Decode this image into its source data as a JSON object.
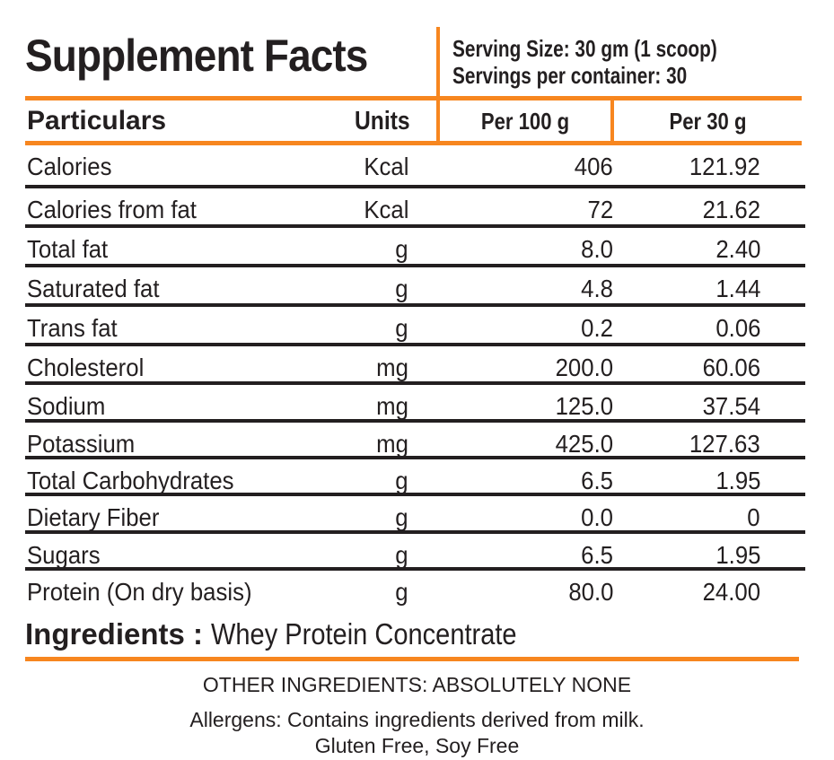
{
  "header": {
    "title": "Supplement Facts",
    "serving_size": "Serving Size: 30 gm (1 scoop)",
    "servings_per_container": "Servings per container:  30"
  },
  "columns": {
    "particulars": "Particulars",
    "units": "Units",
    "per100": "Per 100 g",
    "per30": "Per 30 g"
  },
  "rows": [
    {
      "name": "Calories",
      "unit": "Kcal",
      "per100": "406",
      "per30": "121.92"
    },
    {
      "name": "Calories from fat",
      "unit": "Kcal",
      "per100": "72",
      "per30": "21.62"
    },
    {
      "name": "Total fat",
      "unit": "g",
      "per100": "8.0",
      "per30": "2.40"
    },
    {
      "name": "Saturated fat",
      "unit": "g",
      "per100": "4.8",
      "per30": "1.44"
    },
    {
      "name": "Trans fat",
      "unit": "g",
      "per100": "0.2",
      "per30": "0.06"
    },
    {
      "name": "Cholesterol",
      "unit": "mg",
      "per100": "200.0",
      "per30": "60.06"
    },
    {
      "name": "Sodium",
      "unit": "mg",
      "per100": "125.0",
      "per30": "37.54"
    },
    {
      "name": "Potassium",
      "unit": "mg",
      "per100": "425.0",
      "per30": "127.63"
    },
    {
      "name": "Total Carbohydrates",
      "unit": "g",
      "per100": "6.5",
      "per30": "1.95"
    },
    {
      "name": "Dietary Fiber",
      "unit": "g",
      "per100": "0.0",
      "per30": "0"
    },
    {
      "name": "Sugars",
      "unit": "g",
      "per100": "6.5",
      "per30": "1.95"
    },
    {
      "name": "Protein (On dry basis)",
      "unit": "g",
      "per100": "80.0",
      "per30": "24.00"
    }
  ],
  "ingredients": {
    "label": "Ingredients :",
    "value": "Whey Protein Concentrate"
  },
  "footer": {
    "other": "OTHER INGREDIENTS: ABSOLUTELY NONE",
    "allergens": "Allergens: Contains ingredients derived from milk.",
    "free": "Gluten Free, Soy Free"
  },
  "colors": {
    "accent": "#f7861f",
    "text": "#231f20"
  }
}
